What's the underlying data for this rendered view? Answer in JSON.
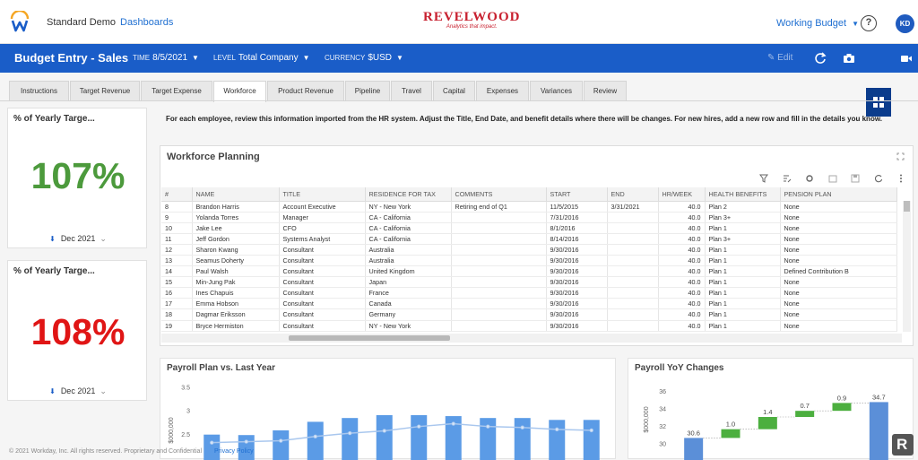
{
  "header": {
    "breadcrumb_app": "Standard Demo",
    "breadcrumb_link": "Dashboards",
    "brand_name": "REVELWOOD",
    "brand_tagline": "Analytics that impact.",
    "scenario_label": "Working Budget",
    "help_label": "?",
    "avatar_initials": "KD"
  },
  "toolbar": {
    "title": "Budget Entry - Sales",
    "time_key": "TIME",
    "time_value": "8/5/2021",
    "level_key": "LEVEL",
    "level_value": "Total Company",
    "currency_key": "CURRENCY",
    "currency_value": "$USD",
    "edit_label": "Edit"
  },
  "tabs": [
    "Instructions",
    "Target Revenue",
    "Target Expense",
    "Workforce",
    "Product Revenue",
    "Pipeline",
    "Travel",
    "Capital",
    "Expenses",
    "Variances",
    "Review"
  ],
  "active_tab": "Workforce",
  "kpis": [
    {
      "title": "% of Yearly Targe...",
      "value": "107%",
      "period": "Dec 2021",
      "color": "#4c9a3c"
    },
    {
      "title": "% of Yearly Targe...",
      "value": "108%",
      "period": "Dec 2021",
      "color": "#e01515"
    }
  ],
  "instructions": "For each employee, review this information imported from the HR system. Adjust the Title, End Date, and benefit details where there will be changes. For new hires, add a new row and fill in the details you know.",
  "workforce": {
    "title": "Workforce Planning",
    "columns": [
      "#",
      "NAME",
      "TITLE",
      "RESIDENCE FOR TAX",
      "COMMENTS",
      "START",
      "END",
      "HR/WEEK",
      "HEALTH BENEFITS",
      "PENSION PLAN"
    ],
    "rows": [
      [
        "8",
        "Brandon Harris",
        "Account Executive",
        "NY - New York",
        "Retiring end of Q1",
        "11/5/2015",
        "3/31/2021",
        "40.0",
        "Plan 2",
        "None"
      ],
      [
        "9",
        "Yolanda Torres",
        "Manager",
        "CA - California",
        "",
        "7/31/2016",
        "",
        "40.0",
        "Plan 3+",
        "None"
      ],
      [
        "10",
        "Jake Lee",
        "CFO",
        "CA - California",
        "",
        "8/1/2016",
        "",
        "40.0",
        "Plan 1",
        "None"
      ],
      [
        "11",
        "Jeff Gordon",
        "Systems Analyst",
        "CA - California",
        "",
        "8/14/2016",
        "",
        "40.0",
        "Plan 3+",
        "None"
      ],
      [
        "12",
        "Sharon Kwang",
        "Consultant",
        "Australia",
        "",
        "9/30/2016",
        "",
        "40.0",
        "Plan 1",
        "None"
      ],
      [
        "13",
        "Seamus Doherty",
        "Consultant",
        "Australia",
        "",
        "9/30/2016",
        "",
        "40.0",
        "Plan 1",
        "None"
      ],
      [
        "14",
        "Paul Walsh",
        "Consultant",
        "United Kingdom",
        "",
        "9/30/2016",
        "",
        "40.0",
        "Plan 1",
        "Defined Contribution B"
      ],
      [
        "15",
        "Min-Jung Pak",
        "Consultant",
        "Japan",
        "",
        "9/30/2016",
        "",
        "40.0",
        "Plan 1",
        "None"
      ],
      [
        "16",
        "Ines Chapuis",
        "Consultant",
        "France",
        "",
        "9/30/2016",
        "",
        "40.0",
        "Plan 1",
        "None"
      ],
      [
        "17",
        "Emma Hobson",
        "Consultant",
        "Canada",
        "",
        "9/30/2016",
        "",
        "40.0",
        "Plan 1",
        "None"
      ],
      [
        "18",
        "Dagmar Eriksson",
        "Consultant",
        "Germany",
        "",
        "9/30/2016",
        "",
        "40.0",
        "Plan 1",
        "None"
      ],
      [
        "19",
        "Bryce Hermiston",
        "Consultant",
        "NY - New York",
        "",
        "9/30/2016",
        "",
        "40.0",
        "Plan 1",
        "None"
      ]
    ]
  },
  "charts_meta": {
    "bar_color": "#5b9be6",
    "line_color": "#a9c7ee",
    "up_color": "#4caf3f",
    "total_color": "#5b8fd8"
  },
  "chart_data": [
    {
      "type": "bar",
      "title": "Payroll Plan vs. Last Year",
      "ylabel": "$000,000",
      "yticks": [
        "3.5",
        "3",
        "2.5"
      ],
      "ylim": [
        2.2,
        3.6
      ],
      "series": [
        {
          "values": [
            2.49,
            2.48,
            2.58,
            2.76,
            2.84,
            2.9,
            2.9,
            2.88,
            2.84,
            2.84,
            2.8,
            2.8
          ]
        },
        {
          "values": [
            2.32,
            2.34,
            2.36,
            2.45,
            2.52,
            2.57,
            2.66,
            2.72,
            2.66,
            2.64,
            2.6,
            2.58
          ]
        }
      ]
    },
    {
      "type": "bar",
      "title": "Payroll YoY Changes",
      "ylabel": "$000,000",
      "yticks": [
        "36",
        "34",
        "32",
        "30"
      ],
      "ylim": [
        29,
        37
      ],
      "bars": [
        {
          "label": "30.6",
          "start": 29,
          "end": 30.6,
          "kind": "total"
        },
        {
          "label": "1.0",
          "start": 30.6,
          "end": 31.6,
          "kind": "up"
        },
        {
          "label": "1.4",
          "start": 31.6,
          "end": 33.0,
          "kind": "up"
        },
        {
          "label": "0.7",
          "start": 33.0,
          "end": 33.7,
          "kind": "up"
        },
        {
          "label": "0.9",
          "start": 33.7,
          "end": 34.6,
          "kind": "up"
        },
        {
          "label": "34.7",
          "start": 29,
          "end": 34.7,
          "kind": "total"
        }
      ]
    }
  ],
  "footer": {
    "copyright": "© 2021 Workday, Inc. All rights reserved. Proprietary and Confidential",
    "privacy": "Privacy Policy"
  }
}
